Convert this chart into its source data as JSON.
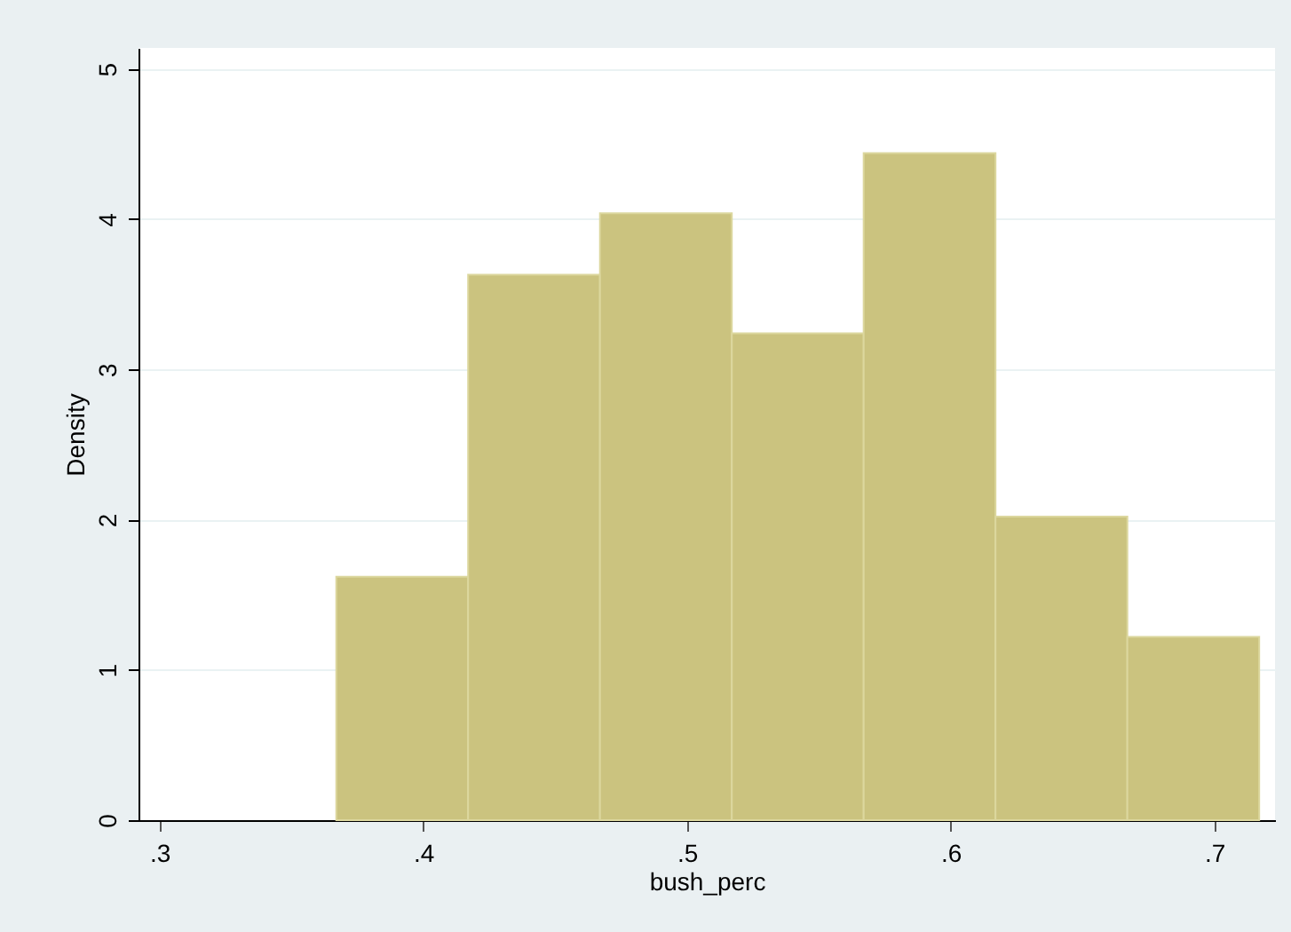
{
  "chart_data": {
    "type": "histogram",
    "xlabel": "bush_perc",
    "ylabel": "Density",
    "bins": [
      0.367,
      0.417,
      0.467,
      0.517,
      0.567,
      0.617,
      0.667,
      0.717
    ],
    "values": [
      1.62,
      3.63,
      4.04,
      3.24,
      4.44,
      2.02,
      1.22
    ],
    "color": "#cbc37f",
    "xlim": [
      0.292,
      0.723
    ],
    "ylim": [
      0,
      5.14
    ],
    "xticks": [
      {
        "value": 0.3,
        "label": ".3"
      },
      {
        "value": 0.4,
        "label": ".4"
      },
      {
        "value": 0.5,
        "label": ".5"
      },
      {
        "value": 0.6,
        "label": ".6"
      },
      {
        "value": 0.7,
        "label": ".7"
      }
    ],
    "yticks": [
      0,
      1,
      2,
      3,
      4,
      5
    ],
    "grid": "y"
  }
}
